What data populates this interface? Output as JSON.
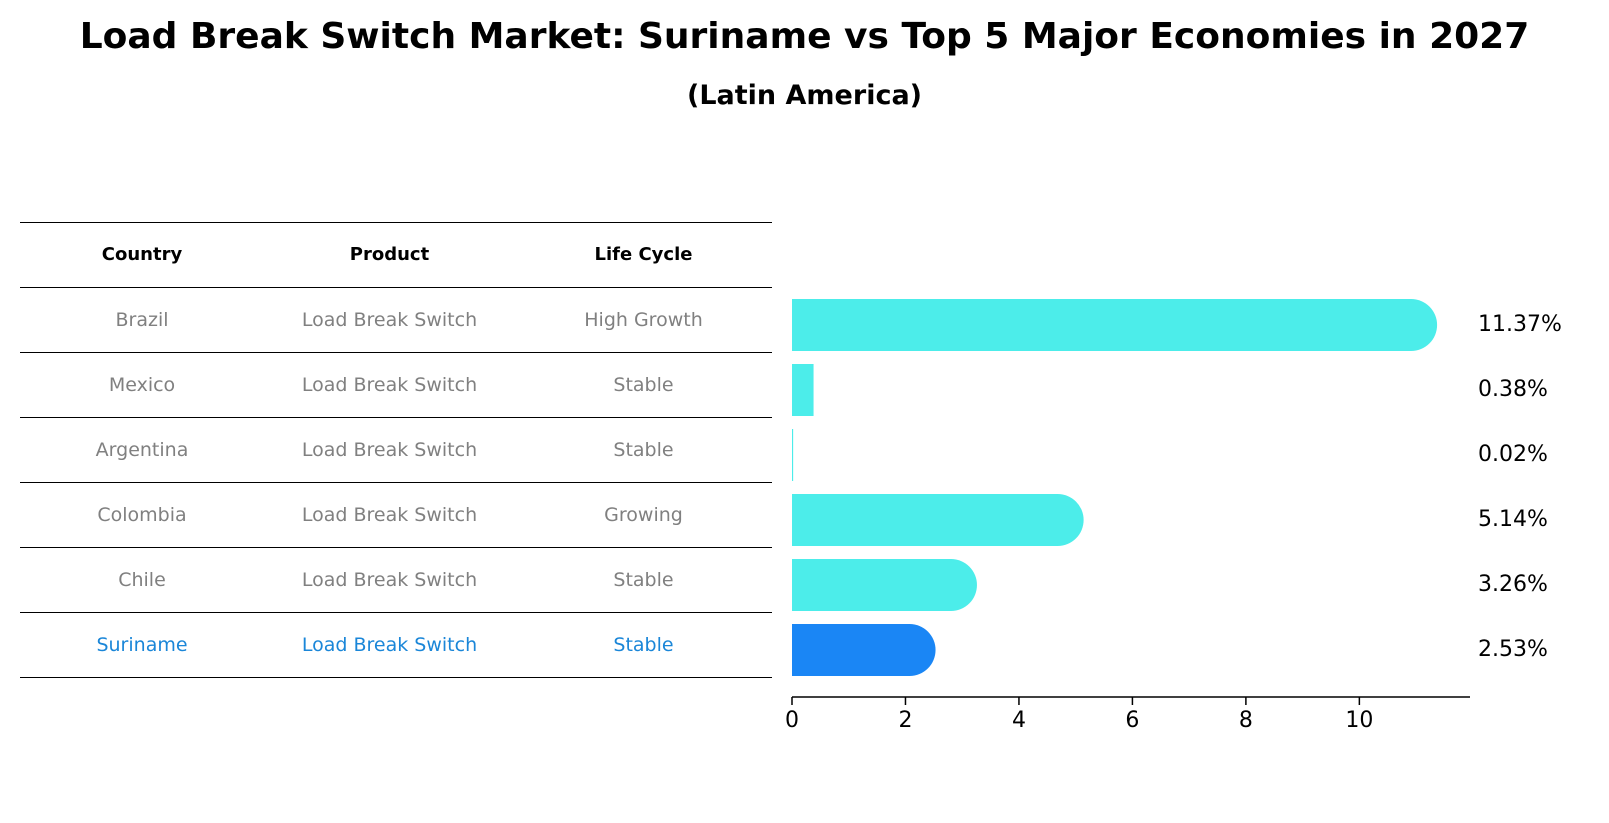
{
  "title": "Load Break Switch Market: Suriname vs Top 5 Major Economies in 2027",
  "subtitle": "(Latin America)",
  "colors": {
    "bar": "#4cedea",
    "highlight_bar": "#1a86f5",
    "highlight_text": "#1a86d8",
    "muted_text": "#808080"
  },
  "table": {
    "headers": [
      "Country",
      "Product",
      "Life Cycle"
    ],
    "rows": [
      {
        "country": "Brazil",
        "product": "Load Break Switch",
        "life_cycle": "High Growth",
        "highlight": false
      },
      {
        "country": "Mexico",
        "product": "Load Break Switch",
        "life_cycle": "Stable",
        "highlight": false
      },
      {
        "country": "Argentina",
        "product": "Load Break Switch",
        "life_cycle": "Stable",
        "highlight": false
      },
      {
        "country": "Colombia",
        "product": "Load Break Switch",
        "life_cycle": "Growing",
        "highlight": false
      },
      {
        "country": "Chile",
        "product": "Load Break Switch",
        "life_cycle": "Stable",
        "highlight": false
      },
      {
        "country": "Suriname",
        "product": "Load Break Switch",
        "life_cycle": "Stable",
        "highlight": true
      }
    ]
  },
  "chart_data": {
    "type": "bar",
    "orientation": "horizontal",
    "categories": [
      "Brazil",
      "Mexico",
      "Argentina",
      "Colombia",
      "Chile",
      "Suriname"
    ],
    "values": [
      11.37,
      0.38,
      0.02,
      5.14,
      3.26,
      2.53
    ],
    "value_labels": [
      "11.37%",
      "0.38%",
      "0.02%",
      "5.14%",
      "3.26%",
      "2.53%"
    ],
    "highlight_category": "Suriname",
    "xlim": [
      0,
      11.95
    ],
    "xticks": [
      0,
      2,
      4,
      6,
      8,
      10
    ],
    "grid": false,
    "xlabel": "",
    "ylabel": ""
  }
}
